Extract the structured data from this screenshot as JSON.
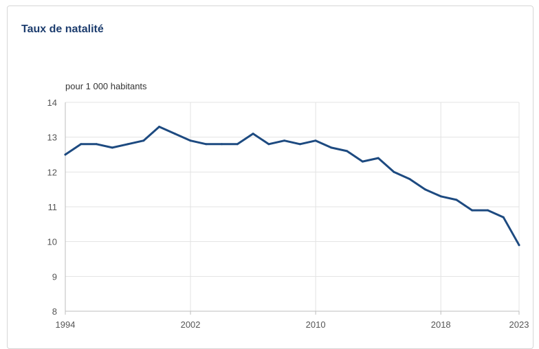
{
  "chart_data": {
    "type": "line",
    "title": "Taux de natalité",
    "ylabel": "pour 1 000 habitants",
    "xlabel": "",
    "xlim": [
      1994,
      2023
    ],
    "ylim": [
      8,
      14
    ],
    "x_ticks": [
      1994,
      2002,
      2010,
      2018,
      2023
    ],
    "y_ticks": [
      8,
      9,
      10,
      11,
      12,
      13,
      14
    ],
    "grid": true,
    "legend": "none",
    "colors": {
      "line": "#1d4a80",
      "grid": "#e3e3e3",
      "axis": "#bdbdbd",
      "title": "#1d3d6e"
    },
    "x": [
      1994,
      1995,
      1996,
      1997,
      1998,
      1999,
      2000,
      2001,
      2002,
      2003,
      2004,
      2005,
      2006,
      2007,
      2008,
      2009,
      2010,
      2011,
      2012,
      2013,
      2014,
      2015,
      2016,
      2017,
      2018,
      2019,
      2020,
      2021,
      2022,
      2023
    ],
    "series": [
      {
        "values": [
          12.5,
          12.8,
          12.8,
          12.7,
          12.8,
          12.9,
          13.3,
          13.1,
          12.9,
          12.8,
          12.8,
          12.8,
          13.1,
          12.8,
          12.9,
          12.8,
          12.9,
          12.7,
          12.6,
          12.3,
          12.4,
          12.0,
          11.8,
          11.5,
          11.3,
          11.2,
          10.9,
          10.9,
          10.7,
          9.9
        ]
      }
    ]
  }
}
